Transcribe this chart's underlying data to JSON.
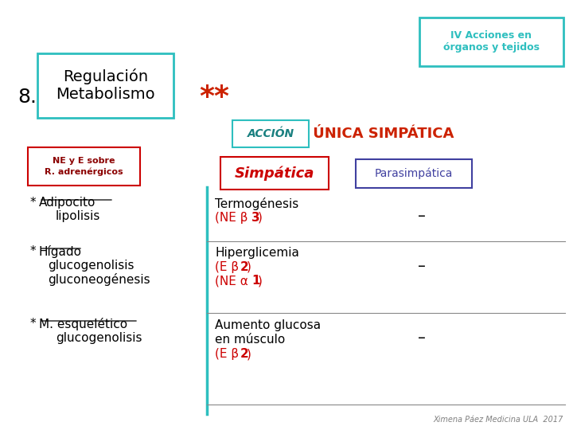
{
  "bg_color": "#ffffff",
  "teal_color": "#2ebfbf",
  "red_color": "#cc0000",
  "dark_red_color": "#8b0000",
  "blue_color": "#4040a0",
  "dark_teal": "#1a8080",
  "orange_red": "#cc2200",
  "title_box_text": "IV Acciones en\nórganos y tejidos",
  "number": "8.",
  "main_title": "Regulación\nMetabolismo",
  "stars": "**",
  "accion_label": "ACCIÓN",
  "unica_text": " ÚNICA SIMPÁTICA",
  "col2_header": "Simpática",
  "col3_header": "Parasimpática",
  "footer": "Ximena Páez Medicina ULA  2017"
}
